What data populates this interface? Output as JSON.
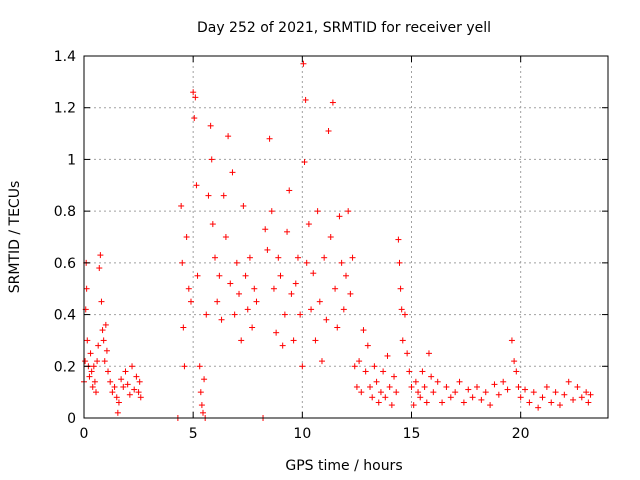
{
  "chart_data": {
    "type": "scatter",
    "title": "Day 252 of 2021, SRMTID for receiver yell",
    "xlabel": "GPS time / hours",
    "ylabel": "SRMTID / TECUs",
    "xlim": [
      0,
      24
    ],
    "ylim": [
      0,
      1.4
    ],
    "x_ticks": [
      0,
      5,
      10,
      15,
      20
    ],
    "x_tick_labels": [
      "0",
      "5",
      "10",
      "15",
      "20"
    ],
    "y_ticks": [
      0,
      0.2,
      0.4,
      0.6,
      0.8,
      1,
      1.2,
      1.4
    ],
    "y_tick_labels": [
      "0",
      "0.2",
      "0.4",
      "0.6",
      "0.8",
      "1",
      "1.2",
      "1.4"
    ],
    "grid": true,
    "marker": "+",
    "color": "#ff0000",
    "series": [
      {
        "name": "yell",
        "points": [
          [
            0.0,
            0.14
          ],
          [
            0.05,
            0.22
          ],
          [
            0.08,
            0.42
          ],
          [
            0.1,
            0.6
          ],
          [
            0.12,
            0.5
          ],
          [
            0.15,
            0.3
          ],
          [
            0.2,
            0.2
          ],
          [
            0.25,
            0.16
          ],
          [
            0.3,
            0.25
          ],
          [
            0.35,
            0.18
          ],
          [
            0.4,
            0.12
          ],
          [
            0.45,
            0.2
          ],
          [
            0.5,
            0.14
          ],
          [
            0.55,
            0.1
          ],
          [
            0.6,
            0.22
          ],
          [
            0.65,
            0.28
          ],
          [
            0.7,
            0.58
          ],
          [
            0.75,
            0.63
          ],
          [
            0.8,
            0.45
          ],
          [
            0.85,
            0.34
          ],
          [
            0.9,
            0.3
          ],
          [
            0.95,
            0.22
          ],
          [
            1.0,
            0.36
          ],
          [
            1.05,
            0.26
          ],
          [
            1.1,
            0.18
          ],
          [
            1.2,
            0.14
          ],
          [
            1.3,
            0.1
          ],
          [
            1.4,
            0.12
          ],
          [
            1.5,
            0.08
          ],
          [
            1.55,
            0.02
          ],
          [
            1.6,
            0.06
          ],
          [
            1.7,
            0.15
          ],
          [
            1.8,
            0.12
          ],
          [
            1.9,
            0.18
          ],
          [
            2.0,
            0.13
          ],
          [
            2.1,
            0.09
          ],
          [
            2.2,
            0.2
          ],
          [
            2.3,
            0.11
          ],
          [
            2.4,
            0.16
          ],
          [
            2.5,
            0.1
          ],
          [
            2.55,
            0.14
          ],
          [
            2.6,
            0.08
          ],
          [
            4.3,
            0.0
          ],
          [
            4.45,
            0.82
          ],
          [
            4.5,
            0.6
          ],
          [
            4.55,
            0.35
          ],
          [
            4.6,
            0.2
          ],
          [
            4.7,
            0.7
          ],
          [
            4.8,
            0.5
          ],
          [
            4.9,
            0.45
          ],
          [
            5.0,
            1.26
          ],
          [
            5.05,
            1.16
          ],
          [
            5.1,
            1.24
          ],
          [
            5.15,
            0.9
          ],
          [
            5.2,
            0.55
          ],
          [
            5.3,
            0.2
          ],
          [
            5.35,
            0.1
          ],
          [
            5.4,
            0.05
          ],
          [
            5.45,
            0.02
          ],
          [
            5.5,
            0.15
          ],
          [
            5.55,
            0.0
          ],
          [
            5.6,
            0.4
          ],
          [
            5.7,
            0.86
          ],
          [
            5.8,
            1.13
          ],
          [
            5.85,
            1.0
          ],
          [
            5.9,
            0.75
          ],
          [
            6.0,
            0.62
          ],
          [
            6.1,
            0.45
          ],
          [
            6.2,
            0.55
          ],
          [
            6.3,
            0.38
          ],
          [
            6.4,
            0.86
          ],
          [
            6.5,
            0.7
          ],
          [
            6.6,
            1.09
          ],
          [
            6.7,
            0.52
          ],
          [
            6.8,
            0.95
          ],
          [
            6.9,
            0.4
          ],
          [
            7.0,
            0.6
          ],
          [
            7.1,
            0.48
          ],
          [
            7.2,
            0.3
          ],
          [
            7.3,
            0.82
          ],
          [
            7.4,
            0.55
          ],
          [
            7.5,
            0.42
          ],
          [
            7.6,
            0.62
          ],
          [
            7.7,
            0.35
          ],
          [
            7.8,
            0.5
          ],
          [
            7.9,
            0.45
          ],
          [
            8.2,
            0.0
          ],
          [
            8.3,
            0.73
          ],
          [
            8.4,
            0.65
          ],
          [
            8.5,
            1.08
          ],
          [
            8.6,
            0.8
          ],
          [
            8.7,
            0.5
          ],
          [
            8.8,
            0.33
          ],
          [
            8.9,
            0.62
          ],
          [
            9.0,
            0.55
          ],
          [
            9.1,
            0.28
          ],
          [
            9.2,
            0.4
          ],
          [
            9.3,
            0.72
          ],
          [
            9.4,
            0.88
          ],
          [
            9.5,
            0.48
          ],
          [
            9.6,
            0.3
          ],
          [
            9.7,
            0.52
          ],
          [
            9.8,
            0.62
          ],
          [
            9.9,
            0.4
          ],
          [
            10.0,
            0.2
          ],
          [
            10.05,
            1.37
          ],
          [
            10.1,
            0.99
          ],
          [
            10.15,
            1.23
          ],
          [
            10.2,
            0.6
          ],
          [
            10.3,
            0.75
          ],
          [
            10.4,
            0.42
          ],
          [
            10.5,
            0.56
          ],
          [
            10.6,
            0.3
          ],
          [
            10.7,
            0.8
          ],
          [
            10.8,
            0.45
          ],
          [
            10.9,
            0.22
          ],
          [
            11.0,
            0.62
          ],
          [
            11.1,
            0.38
          ],
          [
            11.2,
            1.11
          ],
          [
            11.3,
            0.7
          ],
          [
            11.4,
            1.22
          ],
          [
            11.5,
            0.5
          ],
          [
            11.6,
            0.35
          ],
          [
            11.7,
            0.78
          ],
          [
            11.8,
            0.6
          ],
          [
            11.9,
            0.42
          ],
          [
            12.0,
            0.55
          ],
          [
            12.1,
            0.8
          ],
          [
            12.2,
            0.48
          ],
          [
            12.3,
            0.62
          ],
          [
            12.4,
            0.2
          ],
          [
            12.5,
            0.12
          ],
          [
            12.6,
            0.22
          ],
          [
            12.7,
            0.1
          ],
          [
            12.8,
            0.34
          ],
          [
            12.9,
            0.18
          ],
          [
            13.0,
            0.28
          ],
          [
            13.1,
            0.12
          ],
          [
            13.2,
            0.08
          ],
          [
            13.3,
            0.2
          ],
          [
            13.4,
            0.14
          ],
          [
            13.5,
            0.06
          ],
          [
            13.6,
            0.1
          ],
          [
            13.7,
            0.18
          ],
          [
            13.8,
            0.08
          ],
          [
            13.9,
            0.24
          ],
          [
            14.0,
            0.12
          ],
          [
            14.1,
            0.05
          ],
          [
            14.2,
            0.16
          ],
          [
            14.3,
            0.1
          ],
          [
            14.4,
            0.69
          ],
          [
            14.45,
            0.6
          ],
          [
            14.5,
            0.5
          ],
          [
            14.55,
            0.42
          ],
          [
            14.6,
            0.3
          ],
          [
            14.7,
            0.4
          ],
          [
            14.8,
            0.25
          ],
          [
            14.9,
            0.18
          ],
          [
            15.0,
            0.12
          ],
          [
            15.1,
            0.05
          ],
          [
            15.2,
            0.14
          ],
          [
            15.3,
            0.1
          ],
          [
            15.4,
            0.08
          ],
          [
            15.5,
            0.18
          ],
          [
            15.6,
            0.12
          ],
          [
            15.7,
            0.06
          ],
          [
            15.8,
            0.25
          ],
          [
            15.9,
            0.16
          ],
          [
            16.0,
            0.1
          ],
          [
            16.2,
            0.14
          ],
          [
            16.4,
            0.06
          ],
          [
            16.6,
            0.12
          ],
          [
            16.8,
            0.08
          ],
          [
            17.0,
            0.1
          ],
          [
            17.2,
            0.14
          ],
          [
            17.4,
            0.06
          ],
          [
            17.6,
            0.11
          ],
          [
            17.8,
            0.08
          ],
          [
            18.0,
            0.12
          ],
          [
            18.2,
            0.07
          ],
          [
            18.4,
            0.1
          ],
          [
            18.6,
            0.05
          ],
          [
            18.8,
            0.13
          ],
          [
            19.0,
            0.09
          ],
          [
            19.2,
            0.14
          ],
          [
            19.4,
            0.11
          ],
          [
            19.6,
            0.3
          ],
          [
            19.7,
            0.22
          ],
          [
            19.8,
            0.18
          ],
          [
            19.9,
            0.12
          ],
          [
            20.0,
            0.08
          ],
          [
            20.2,
            0.11
          ],
          [
            20.4,
            0.06
          ],
          [
            20.6,
            0.1
          ],
          [
            20.8,
            0.04
          ],
          [
            21.0,
            0.08
          ],
          [
            21.2,
            0.12
          ],
          [
            21.4,
            0.06
          ],
          [
            21.6,
            0.1
          ],
          [
            21.8,
            0.05
          ],
          [
            22.0,
            0.09
          ],
          [
            22.2,
            0.14
          ],
          [
            22.4,
            0.07
          ],
          [
            22.6,
            0.12
          ],
          [
            22.8,
            0.08
          ],
          [
            23.0,
            0.1
          ],
          [
            23.1,
            0.06
          ],
          [
            23.2,
            0.09
          ]
        ]
      }
    ]
  }
}
